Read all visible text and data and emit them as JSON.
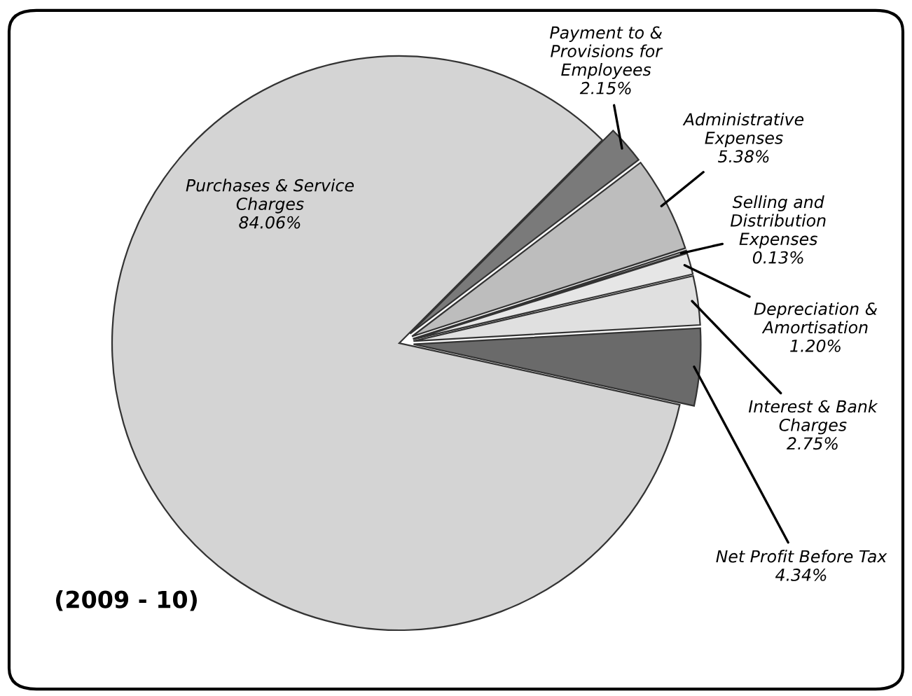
{
  "chart_data": {
    "type": "pie",
    "categories": [
      "Purchases & Service\nCharges",
      "Payment to &\nProvisions for\nEmployees",
      "Administrative\nExpenses",
      "Selling and\nDistribution\nExpenses",
      "Depreciation &\nAmortisation",
      "Interest & Bank\nCharges",
      "Net Profit Before Tax"
    ],
    "values": [
      84.06,
      2.15,
      5.38,
      0.13,
      1.2,
      2.75,
      4.34
    ],
    "value_labels": [
      "84.06%",
      "2.15%",
      "5.38%",
      "0.13%",
      "1.20%",
      "2.75%",
      "4.34%"
    ],
    "colors": [
      "#d4d4d4",
      "#7a7a7a",
      "#bdbdbd",
      "#d0d0d0",
      "#e6e6e6",
      "#e0e0e0",
      "#6a6a6a"
    ],
    "annotations": [
      "(2009 - 10)"
    ]
  }
}
